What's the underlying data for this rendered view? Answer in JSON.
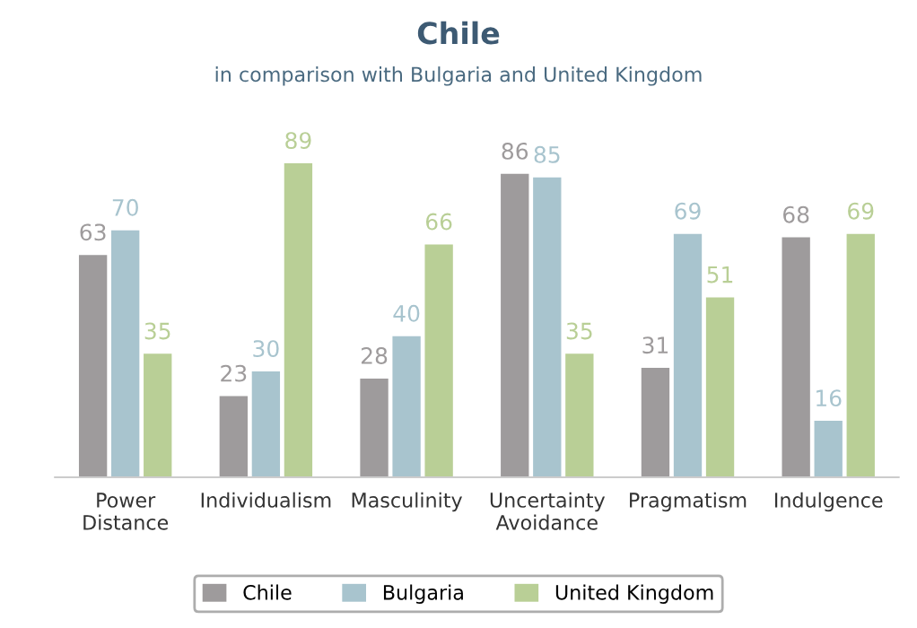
{
  "chart_data": {
    "type": "bar",
    "title": "Chile",
    "subtitle": "in comparison with Bulgaria and United Kingdom",
    "categories": [
      "Power\nDistance",
      "Individualism",
      "Masculinity",
      "Uncertainty\nAvoidance",
      "Pragmatism",
      "Indulgence"
    ],
    "series": [
      {
        "name": "Chile",
        "color": "#9e9b9c",
        "values": [
          63,
          23,
          28,
          86,
          31,
          68
        ]
      },
      {
        "name": "Bulgaria",
        "color": "#a8c4ce",
        "values": [
          70,
          30,
          40,
          85,
          69,
          16
        ]
      },
      {
        "name": "United Kingdom",
        "color": "#b9cf96",
        "values": [
          35,
          89,
          66,
          35,
          51,
          69
        ]
      }
    ],
    "data_labels": true,
    "legend": "bottom",
    "grid": false
  }
}
